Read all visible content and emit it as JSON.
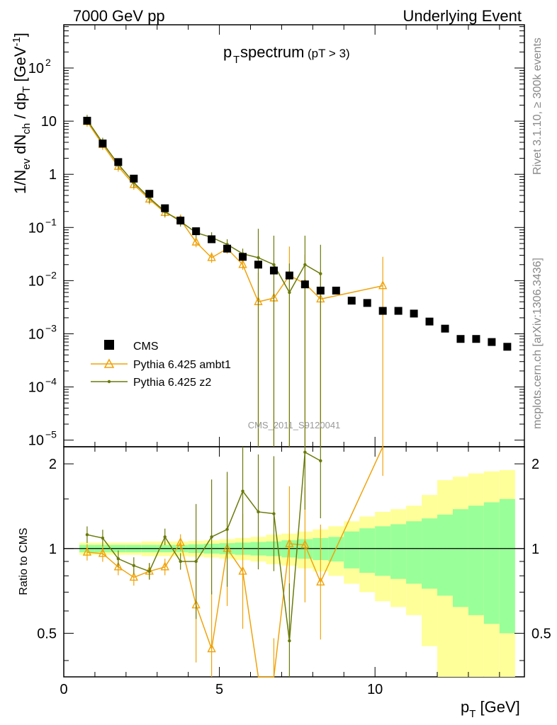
{
  "header": {
    "left": "7000 GeV pp",
    "right": "Underlying Event"
  },
  "side_text": {
    "version": "Rivet 3.1.10, ≥ 300k events",
    "source": "mcplots.cern.ch [arXiv:1306.3436]"
  },
  "title": {
    "main": "p",
    "main_sub": "T",
    "main_rest": " spectrum",
    "cut": "(pT >  3)"
  },
  "watermark": "CMS_2011_S9120041",
  "axes": {
    "ylabel_top": "1/N_ev dN_ch / dp_T [GeV^-1]",
    "ylabel_bottom": "Ratio to CMS",
    "xlabel": "p_T [GeV]",
    "xticks": [
      "0",
      "5",
      "10"
    ],
    "yticks_top": [
      "10^-5",
      "10^-4",
      "10^-3",
      "10^-2",
      "10^-1",
      "1",
      "10",
      "10^2"
    ],
    "yticks_bottom": [
      "0.5",
      "1",
      "2"
    ]
  },
  "colors": {
    "data": "#000000",
    "ambt1": "#f0a30a",
    "z2": "#6b7a0a",
    "band_inner": "#99ff99",
    "band_outer": "#ffff99"
  },
  "chart_data": {
    "type": "scatter",
    "xlim": [
      0,
      14.8
    ],
    "ylim_top": [
      7.5e-06,
      650
    ],
    "ylog_top": true,
    "ylim_bottom": [
      0.35,
      2.3
    ],
    "ylog_bottom": true,
    "x": [
      0.75,
      1.25,
      1.75,
      2.25,
      2.75,
      3.25,
      3.75,
      4.25,
      4.75,
      5.25,
      5.75,
      6.25,
      6.75,
      7.25,
      7.75,
      8.25,
      8.75,
      9.25,
      9.75,
      10.25,
      10.75,
      11.25,
      11.75,
      12.25,
      12.75,
      13.25,
      13.75,
      14.25
    ],
    "legend": [
      {
        "label": "CMS",
        "marker": "square"
      },
      {
        "label": "Pythia 6.425 ambt1",
        "marker": "triangle"
      },
      {
        "label": "Pythia 6.425 z2",
        "marker": "dot"
      }
    ],
    "series": [
      {
        "name": "CMS",
        "values": [
          10.2,
          3.8,
          1.7,
          0.83,
          0.43,
          0.23,
          0.135,
          0.085,
          0.06,
          0.04,
          0.028,
          0.02,
          0.0155,
          0.0125,
          0.0085,
          0.0065,
          0.0065,
          0.0042,
          0.0038,
          0.0027,
          0.0027,
          0.0024,
          0.0017,
          0.00125,
          0.0008,
          0.0008,
          0.0007,
          0.00057
        ]
      },
      {
        "name": "Pythia 6.425 ambt1",
        "x": [
          0.75,
          1.25,
          1.75,
          2.25,
          2.75,
          3.25,
          3.75,
          4.25,
          4.75,
          5.25,
          5.75,
          6.25,
          6.75,
          7.25,
          7.75,
          8.25,
          10.25
        ],
        "values": [
          9.8,
          3.6,
          1.4,
          0.64,
          0.34,
          0.19,
          0.14,
          0.053,
          0.027,
          0.04,
          0.02,
          0.004,
          0.0047,
          0.0125,
          0.0088,
          0.0045,
          0.008
        ],
        "ratio": [
          0.97,
          0.96,
          0.86,
          0.79,
          0.83,
          0.86,
          1.05,
          0.63,
          0.44,
          1.0,
          0.83,
          0.2,
          0.3,
          1.04,
          1.03,
          0.76,
          2.9
        ]
      },
      {
        "name": "Pythia 6.425 z2",
        "x": [
          0.75,
          1.25,
          1.75,
          2.25,
          2.75,
          3.25,
          3.75,
          4.25,
          4.75,
          5.25,
          5.75,
          6.25,
          6.75,
          7.25,
          7.75,
          8.25
        ],
        "values": [
          10.5,
          3.9,
          1.55,
          0.7,
          0.36,
          0.2,
          0.13,
          0.08,
          0.065,
          0.048,
          0.032,
          0.027,
          0.02,
          0.006,
          0.02,
          0.0135
        ],
        "ratio": [
          1.12,
          1.09,
          0.92,
          0.87,
          0.83,
          1.1,
          0.9,
          0.9,
          1.1,
          1.17,
          1.6,
          1.35,
          1.33,
          0.47,
          2.2,
          2.05
        ]
      }
    ],
    "ratio_band": {
      "x_edges": [
        0.5,
        1.0,
        1.5,
        2.0,
        2.5,
        3.0,
        3.5,
        4.0,
        4.5,
        5.0,
        5.5,
        6.0,
        6.5,
        7.0,
        7.5,
        8.0,
        8.5,
        9.0,
        9.5,
        10.0,
        10.5,
        11.0,
        11.5,
        12.0,
        12.5,
        13.0,
        13.5,
        14.0,
        14.5
      ],
      "inner": [
        0.03,
        0.03,
        0.03,
        0.03,
        0.03,
        0.03,
        0.03,
        0.035,
        0.04,
        0.045,
        0.05,
        0.055,
        0.06,
        0.07,
        0.08,
        0.09,
        0.1,
        0.15,
        0.18,
        0.2,
        0.22,
        0.25,
        0.28,
        0.32,
        0.38,
        0.42,
        0.46,
        0.5
      ],
      "outer": [
        0.05,
        0.05,
        0.05,
        0.05,
        0.06,
        0.06,
        0.06,
        0.065,
        0.07,
        0.08,
        0.09,
        0.1,
        0.12,
        0.13,
        0.15,
        0.17,
        0.2,
        0.25,
        0.3,
        0.35,
        0.38,
        0.42,
        0.55,
        0.75,
        0.8,
        0.85,
        0.88,
        0.9
      ]
    }
  }
}
